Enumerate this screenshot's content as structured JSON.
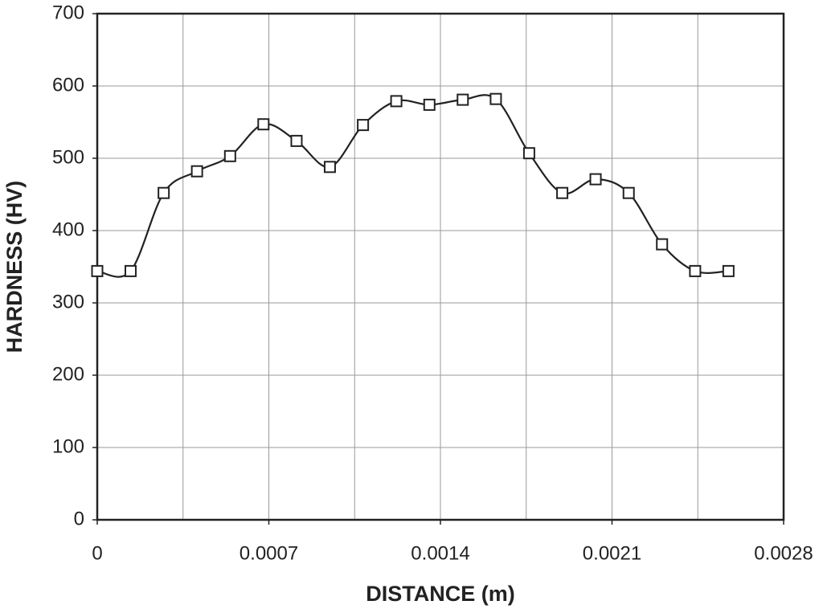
{
  "chart_data": {
    "type": "line",
    "x_label": "DISTANCE (m)",
    "y_label": "HARDNESS (HV)",
    "x": [
      0,
      0.000136,
      0.000271,
      0.000407,
      0.000542,
      0.000678,
      0.000813,
      0.000949,
      0.001084,
      0.00122,
      0.001355,
      0.001491,
      0.001626,
      0.001762,
      0.001897,
      0.002033,
      0.002168,
      0.002304,
      0.002439,
      0.002575
    ],
    "series": [
      {
        "name": "Hardness",
        "color": "#222222",
        "values": [
          344,
          344,
          452,
          482,
          503,
          547,
          524,
          488,
          546,
          579,
          574,
          581,
          582,
          507,
          452,
          471,
          452,
          381,
          344,
          344
        ]
      }
    ],
    "xlim": [
      0,
      0.0028
    ],
    "xticks": [
      0,
      0.0007,
      0.0014,
      0.0021,
      0.0028
    ],
    "x_minor_ticks": [
      0.00035,
      0.00105,
      0.00175,
      0.00245
    ],
    "ylim": [
      0,
      700
    ],
    "yticks": [
      0,
      100,
      200,
      300,
      400,
      500,
      600,
      700
    ],
    "grid": true,
    "marker": "square",
    "smooth": true
  }
}
